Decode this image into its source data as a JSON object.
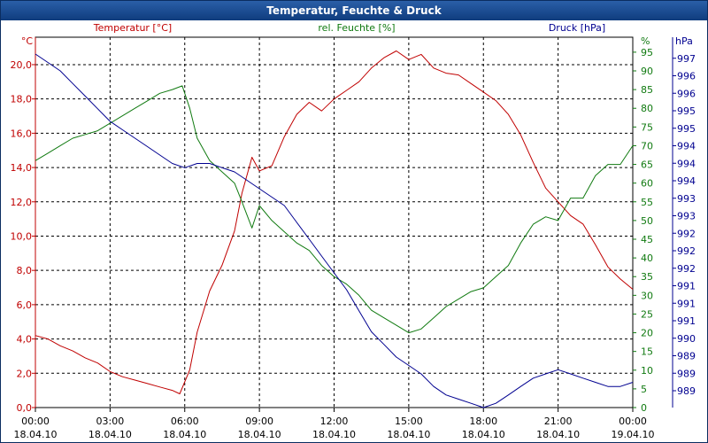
{
  "window": {
    "title": "Temperatur, Feuchte & Druck"
  },
  "colors": {
    "temperature": "#c00000",
    "humidity": "#107a10",
    "pressure": "#000090",
    "grid": "#000000",
    "text": "#000000"
  },
  "chart_data": {
    "type": "line",
    "title": "Temperatur, Feuchte & Druck",
    "legend": [
      {
        "name": "Temperatur [°C]",
        "color": "#c00000",
        "position": "top-left"
      },
      {
        "name": "rel. Feuchte [%]",
        "color": "#107a10",
        "position": "top-center"
      },
      {
        "name": "Druck [hPa]",
        "color": "#000090",
        "position": "top-right"
      }
    ],
    "axes": {
      "temperature": {
        "unit": "°C",
        "range": [
          0,
          21.6
        ],
        "ticks": [
          "0,0",
          "2,0",
          "4,0",
          "6,0",
          "8,0",
          "10,0",
          "12,0",
          "14,0",
          "16,0",
          "18,0",
          "20,0"
        ]
      },
      "humidity": {
        "unit": "%",
        "range": [
          0,
          99
        ],
        "ticks": [
          "0",
          "5",
          "10",
          "15",
          "20",
          "25",
          "30",
          "35",
          "40",
          "45",
          "50",
          "55",
          "60",
          "65",
          "70",
          "75",
          "80",
          "85",
          "90",
          "95"
        ]
      },
      "pressure": {
        "unit": "hPa",
        "range": [
          988.6,
          997.4
        ],
        "ticks": [
          "989",
          "989",
          "989",
          "990",
          "991",
          "991",
          "991",
          "992",
          "992",
          "992",
          "993",
          "993",
          "994",
          "994",
          "994",
          "995",
          "995",
          "996",
          "996",
          "997"
        ]
      }
    },
    "x_ticks": [
      {
        "time": "00:00",
        "date": "18.04.10"
      },
      {
        "time": "03:00",
        "date": "18.04.10"
      },
      {
        "time": "06:00",
        "date": "18.04.10"
      },
      {
        "time": "09:00",
        "date": "18.04.10"
      },
      {
        "time": "12:00",
        "date": "18.04.10"
      },
      {
        "time": "15:00",
        "date": "18.04.10"
      },
      {
        "time": "18:00",
        "date": "18.04.10"
      },
      {
        "time": "21:00",
        "date": "18.04.10"
      },
      {
        "time": "00:00",
        "date": "19.04.10"
      }
    ],
    "x_range_hours": [
      0,
      24
    ],
    "series": [
      {
        "name": "Temperatur",
        "axis": "temperature",
        "color": "#c00000",
        "points": [
          [
            0,
            4.2
          ],
          [
            0.5,
            4.0
          ],
          [
            1,
            3.6
          ],
          [
            1.5,
            3.3
          ],
          [
            2,
            2.9
          ],
          [
            2.5,
            2.6
          ],
          [
            3,
            2.1
          ],
          [
            3.5,
            1.8
          ],
          [
            4,
            1.6
          ],
          [
            4.5,
            1.4
          ],
          [
            5,
            1.2
          ],
          [
            5.5,
            1.0
          ],
          [
            5.8,
            0.8
          ],
          [
            6.2,
            2.2
          ],
          [
            6.5,
            4.4
          ],
          [
            7,
            6.8
          ],
          [
            7.5,
            8.3
          ],
          [
            8,
            10.3
          ],
          [
            8.3,
            12.5
          ],
          [
            8.7,
            14.6
          ],
          [
            9,
            13.8
          ],
          [
            9.5,
            14.1
          ],
          [
            10,
            15.8
          ],
          [
            10.5,
            17.1
          ],
          [
            11,
            17.8
          ],
          [
            11.5,
            17.3
          ],
          [
            12,
            18.0
          ],
          [
            12.5,
            18.5
          ],
          [
            13,
            19.0
          ],
          [
            13.5,
            19.8
          ],
          [
            14,
            20.4
          ],
          [
            14.5,
            20.8
          ],
          [
            15,
            20.3
          ],
          [
            15.5,
            20.6
          ],
          [
            16,
            19.8
          ],
          [
            16.5,
            19.5
          ],
          [
            17,
            19.4
          ],
          [
            17.5,
            18.9
          ],
          [
            18,
            18.4
          ],
          [
            18.5,
            17.9
          ],
          [
            19,
            17.1
          ],
          [
            19.5,
            15.9
          ],
          [
            20,
            14.3
          ],
          [
            20.5,
            12.8
          ],
          [
            21,
            12.0
          ],
          [
            21.5,
            11.2
          ],
          [
            22,
            10.7
          ],
          [
            22.5,
            9.5
          ],
          [
            23,
            8.2
          ],
          [
            23.5,
            7.5
          ],
          [
            24,
            6.9
          ]
        ]
      },
      {
        "name": "rel. Feuchte",
        "axis": "humidity",
        "color": "#107a10",
        "points": [
          [
            0,
            66
          ],
          [
            0.5,
            68
          ],
          [
            1,
            70
          ],
          [
            1.5,
            72
          ],
          [
            2,
            73
          ],
          [
            2.5,
            74
          ],
          [
            3,
            76
          ],
          [
            3.5,
            78
          ],
          [
            4,
            80
          ],
          [
            4.5,
            82
          ],
          [
            5,
            84
          ],
          [
            5.5,
            85
          ],
          [
            5.9,
            86
          ],
          [
            6.2,
            80
          ],
          [
            6.5,
            72
          ],
          [
            7,
            66
          ],
          [
            7.5,
            63
          ],
          [
            8,
            60
          ],
          [
            8.3,
            55
          ],
          [
            8.7,
            48
          ],
          [
            9,
            54
          ],
          [
            9.5,
            50
          ],
          [
            10,
            47
          ],
          [
            10.5,
            44
          ],
          [
            11,
            42
          ],
          [
            11.5,
            38
          ],
          [
            12,
            35
          ],
          [
            12.5,
            33
          ],
          [
            13,
            30
          ],
          [
            13.5,
            26
          ],
          [
            14,
            24
          ],
          [
            14.5,
            22
          ],
          [
            15,
            20
          ],
          [
            15.5,
            21
          ],
          [
            16,
            24
          ],
          [
            16.5,
            27
          ],
          [
            17,
            29
          ],
          [
            17.5,
            31
          ],
          [
            18,
            32
          ],
          [
            18.5,
            35
          ],
          [
            19,
            38
          ],
          [
            19.5,
            44
          ],
          [
            20,
            49
          ],
          [
            20.5,
            51
          ],
          [
            21,
            50
          ],
          [
            21.5,
            56
          ],
          [
            22,
            56
          ],
          [
            22.5,
            62
          ],
          [
            23,
            65
          ],
          [
            23.5,
            65
          ],
          [
            24,
            70
          ]
        ]
      },
      {
        "name": "Druck",
        "axis": "pressure",
        "color": "#000090",
        "points": [
          [
            0,
            997.0
          ],
          [
            0.5,
            996.8
          ],
          [
            1,
            996.6
          ],
          [
            1.5,
            996.3
          ],
          [
            2,
            996.0
          ],
          [
            2.5,
            995.7
          ],
          [
            3,
            995.4
          ],
          [
            3.5,
            995.2
          ],
          [
            4,
            995.0
          ],
          [
            4.5,
            994.8
          ],
          [
            5,
            994.6
          ],
          [
            5.5,
            994.4
          ],
          [
            6,
            994.3
          ],
          [
            6.5,
            994.4
          ],
          [
            7,
            994.4
          ],
          [
            7.5,
            994.3
          ],
          [
            8,
            994.2
          ],
          [
            8.5,
            994.0
          ],
          [
            9,
            993.8
          ],
          [
            9.5,
            993.6
          ],
          [
            10,
            993.4
          ],
          [
            10.5,
            993.0
          ],
          [
            11,
            992.6
          ],
          [
            11.5,
            992.2
          ],
          [
            12,
            991.8
          ],
          [
            12.5,
            991.4
          ],
          [
            13,
            990.9
          ],
          [
            13.5,
            990.4
          ],
          [
            14,
            990.1
          ],
          [
            14.5,
            989.8
          ],
          [
            15,
            989.6
          ],
          [
            15.5,
            989.4
          ],
          [
            16,
            989.1
          ],
          [
            16.5,
            988.9
          ],
          [
            17,
            988.8
          ],
          [
            17.5,
            988.7
          ],
          [
            18,
            988.6
          ],
          [
            18.5,
            988.7
          ],
          [
            19,
            988.9
          ],
          [
            19.5,
            989.1
          ],
          [
            20,
            989.3
          ],
          [
            20.5,
            989.4
          ],
          [
            21,
            989.5
          ],
          [
            21.5,
            989.4
          ],
          [
            22,
            989.3
          ],
          [
            22.5,
            989.2
          ],
          [
            23,
            989.1
          ],
          [
            23.5,
            989.1
          ],
          [
            24,
            989.2
          ]
        ]
      }
    ]
  }
}
